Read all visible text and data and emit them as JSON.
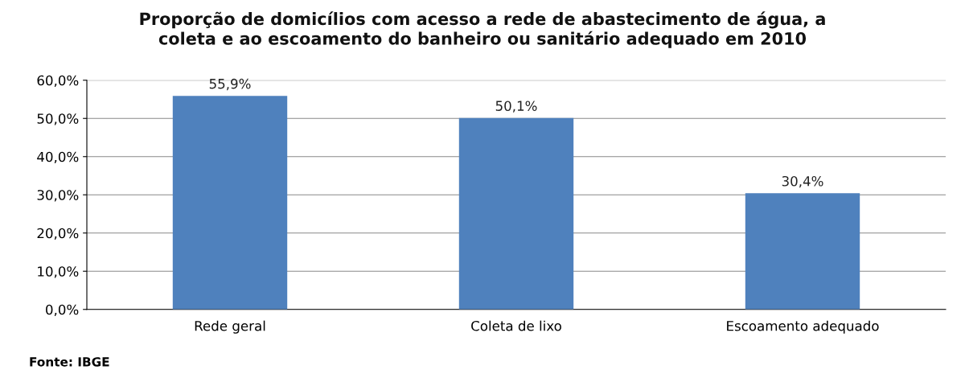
{
  "chart_data": {
    "type": "bar",
    "title": "Proporção de domicílios com acesso a rede de abastecimento de água, a\ncoleta e ao escoamento do banheiro ou sanitário adequado em 2010",
    "categories": [
      "Rede geral",
      "Coleta de lixo",
      "Escoamento adequado"
    ],
    "values": [
      55.9,
      50.1,
      30.4
    ],
    "value_labels": [
      "55,9%",
      "50,1%",
      "30,4%"
    ],
    "color": "#4f81bd",
    "ylim": [
      0,
      60
    ],
    "yticks": [
      {
        "value": 0,
        "label": "0,0%"
      },
      {
        "value": 10,
        "label": "10,0%"
      },
      {
        "value": 20,
        "label": "20,0%"
      },
      {
        "value": 30,
        "label": "30,0%"
      },
      {
        "value": 40,
        "label": "40,0%"
      },
      {
        "value": 50,
        "label": "50,0%"
      },
      {
        "value": 60,
        "label": "60,0%"
      }
    ],
    "grid": "y",
    "annotations": [
      "Fonte: IBGE"
    ]
  }
}
